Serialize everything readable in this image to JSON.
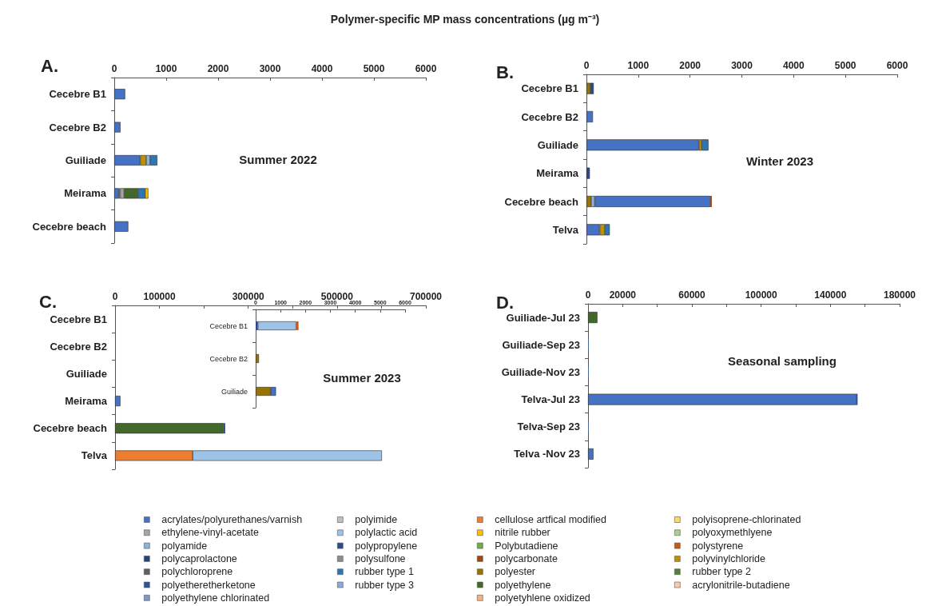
{
  "chart_data": [
    {
      "type": "bar",
      "orientation": "horizontal",
      "stacked": true,
      "title": "Polymer-specific MP mass concentrations (µg m⁻³)",
      "annotations": [
        "A.",
        "Summer 2022"
      ],
      "categories": [
        "Cecebre B1",
        "Cecebre B2",
        "Guiliade",
        "Meirama",
        "Cecebre beach"
      ],
      "xlim": [
        0,
        6000
      ],
      "xticks": [
        0,
        1000,
        2000,
        3000,
        4000,
        5000,
        6000
      ],
      "series": [
        {
          "color": "#4472c4",
          "values": [
            210,
            120,
            500,
            75,
            270
          ]
        },
        {
          "color": "#5f5f5f",
          "values": [
            null,
            null,
            null,
            40,
            null
          ]
        },
        {
          "color": "#a5a5a5",
          "values": [
            null,
            null,
            null,
            75,
            null
          ]
        },
        {
          "color": "#43682b",
          "values": [
            null,
            null,
            null,
            270,
            null
          ]
        },
        {
          "color": "#bf9000",
          "values": [
            null,
            null,
            115,
            null,
            null
          ]
        },
        {
          "color": "#8fb0d8",
          "values": [
            null,
            null,
            75,
            null,
            null
          ]
        },
        {
          "color": "#2e75b6",
          "values": [
            null,
            null,
            140,
            135,
            null
          ]
        },
        {
          "color": "#ffc000",
          "values": [
            null,
            null,
            null,
            60,
            null
          ]
        }
      ]
    },
    {
      "type": "bar",
      "orientation": "horizontal",
      "stacked": true,
      "annotations": [
        "B.",
        "Winter 2023"
      ],
      "categories": [
        "Cecebre B1",
        "Cecebre B2",
        "Guiliade",
        "Meirama",
        "Cecebre beach",
        "Telva"
      ],
      "xlim": [
        0,
        6000
      ],
      "xticks": [
        0,
        1000,
        2000,
        3000,
        4000,
        5000,
        6000
      ],
      "series": [
        {
          "color": "#997300",
          "values": [
            75,
            null,
            null,
            null,
            90,
            null
          ]
        },
        {
          "color": "#8fb0d8",
          "values": [
            null,
            null,
            null,
            null,
            70,
            null
          ]
        },
        {
          "color": "#4472c4",
          "values": [
            null,
            125,
            2170,
            null,
            2230,
            255
          ]
        },
        {
          "color": "#bf9000",
          "values": [
            null,
            null,
            55,
            null,
            null,
            100
          ]
        },
        {
          "color": "#2e4a8c",
          "values": [
            65,
            null,
            null,
            65,
            null,
            null
          ]
        },
        {
          "color": "#2e75b6",
          "values": [
            null,
            null,
            130,
            null,
            null,
            95
          ]
        },
        {
          "color": "#9e480e",
          "values": [
            null,
            null,
            null,
            null,
            30,
            null
          ]
        }
      ]
    },
    {
      "type": "bar",
      "orientation": "horizontal",
      "stacked": true,
      "annotations": [
        "C.",
        "Summer 2023"
      ],
      "categories": [
        "Cecebre B1",
        "Cecebre B2",
        "Guiliade",
        "Meirama",
        "Cecebre beach",
        "Telva"
      ],
      "xlim": [
        0,
        700000
      ],
      "xticks": [
        0,
        100000,
        {
          "value": 200000,
          "label": null
        },
        300000,
        {
          "value": 400000,
          "label": null
        },
        500000,
        {
          "value": 600000,
          "label": null
        },
        700000
      ],
      "series": [
        {
          "color": "#43682b",
          "values": [
            null,
            null,
            null,
            null,
            244000,
            null
          ]
        },
        {
          "color": "#264478",
          "values": [
            null,
            null,
            null,
            null,
            4000,
            null
          ]
        },
        {
          "color": "#ed7d31",
          "values": [
            null,
            null,
            null,
            null,
            null,
            175000
          ]
        },
        {
          "color": "#9dc3e6",
          "values": [
            null,
            null,
            null,
            null,
            null,
            426000
          ]
        },
        {
          "color": "#4472c4",
          "values": [
            null,
            null,
            null,
            12000,
            null,
            null
          ]
        }
      ]
    },
    {
      "type": "bar",
      "orientation": "horizontal",
      "stacked": true,
      "categories": [
        "Cecebre B1",
        "Cecebre B2",
        "Guiliade"
      ],
      "xlim": [
        0,
        6000
      ],
      "xticks": [
        0,
        1000,
        2000,
        3000,
        4000,
        5000,
        6000
      ],
      "series": [
        {
          "color": "#2e4a8c",
          "values": [
            85,
            null,
            null
          ]
        },
        {
          "color": "#997300",
          "values": [
            null,
            130,
            600
          ]
        },
        {
          "color": "#9dc3e6",
          "values": [
            1540,
            null,
            null
          ]
        },
        {
          "color": "#4472c4",
          "values": [
            null,
            null,
            215
          ]
        },
        {
          "color": "#c55a11",
          "values": [
            95,
            null,
            null
          ]
        }
      ]
    },
    {
      "type": "bar",
      "orientation": "horizontal",
      "stacked": true,
      "legend": "bottom",
      "annotations": [
        "D.",
        "Seasonal sampling"
      ],
      "categories": [
        "Guiliade-Jul 23",
        "Guiliade-Sep 23",
        "Guiliade-Nov 23",
        "Telva-Jul 23",
        "Telva-Sep 23",
        "Telva -Nov 23"
      ],
      "xlim": [
        0,
        180000
      ],
      "xticks": [
        0,
        20000,
        {
          "value": 40000,
          "label": null
        },
        60000,
        {
          "value": 80000,
          "label": null
        },
        100000,
        {
          "value": 120000,
          "label": null
        },
        140000,
        {
          "value": 160000,
          "label": null
        },
        180000
      ],
      "series": [
        {
          "name": "acrylates/polyurethanes/varnish",
          "color": "#4472c4",
          "values": [
            null,
            300,
            300,
            155000,
            300,
            3100
          ]
        },
        {
          "name": "ethylene-vinyl-acetate",
          "color": "#a5a5a5",
          "values": [
            null,
            null,
            null,
            null,
            null,
            null
          ]
        },
        {
          "name": "polyamide",
          "color": "#8fb0d8",
          "values": [
            null,
            null,
            null,
            null,
            null,
            null
          ]
        },
        {
          "name": "polycaprolactone",
          "color": "#264478",
          "values": [
            null,
            null,
            null,
            null,
            null,
            null
          ]
        },
        {
          "name": "polychloroprene",
          "color": "#5f5f5f",
          "values": [
            null,
            null,
            null,
            null,
            null,
            null
          ]
        },
        {
          "name": "polyetheretherketone",
          "color": "#2f5597",
          "values": [
            null,
            null,
            null,
            null,
            null,
            null
          ]
        },
        {
          "name": "polyethylene chlorinated",
          "color": "#7f97c9",
          "values": [
            null,
            null,
            null,
            null,
            null,
            null
          ]
        },
        {
          "name": "polyimide",
          "color": "#bfbfbf",
          "values": [
            null,
            null,
            null,
            null,
            null,
            null
          ]
        },
        {
          "name": "polylactic acid",
          "color": "#9dc3e6",
          "values": [
            null,
            null,
            null,
            null,
            null,
            null
          ]
        },
        {
          "name": "polypropylene",
          "color": "#2e4a8c",
          "values": [
            null,
            null,
            null,
            700,
            null,
            null
          ]
        },
        {
          "name": "polysulfone",
          "color": "#8c8c8c",
          "values": [
            null,
            null,
            null,
            null,
            null,
            null
          ]
        },
        {
          "name": "rubber type 1",
          "color": "#2e75b6",
          "values": [
            null,
            null,
            null,
            null,
            null,
            null
          ]
        },
        {
          "name": "rubber type 3",
          "color": "#8eaadb",
          "values": [
            null,
            null,
            null,
            null,
            null,
            null
          ]
        },
        {
          "name": "cellulose artfical modified",
          "color": "#ed7d31",
          "values": [
            null,
            null,
            null,
            null,
            null,
            null
          ]
        },
        {
          "name": "nitrile rubber",
          "color": "#ffc000",
          "values": [
            null,
            null,
            null,
            null,
            null,
            null
          ]
        },
        {
          "name": "Polybutadiene",
          "color": "#70ad47",
          "values": [
            null,
            null,
            null,
            null,
            null,
            null
          ]
        },
        {
          "name": "polycarbonate",
          "color": "#9e480e",
          "values": [
            null,
            null,
            null,
            null,
            null,
            null
          ]
        },
        {
          "name": "polyester",
          "color": "#997300",
          "values": [
            null,
            null,
            null,
            null,
            null,
            null
          ]
        },
        {
          "name": "polyethylene",
          "color": "#43682b",
          "values": [
            5400,
            null,
            null,
            null,
            null,
            null
          ]
        },
        {
          "name": "polyetyhlene oxidized",
          "color": "#f4b183",
          "values": [
            null,
            null,
            null,
            null,
            null,
            null
          ]
        },
        {
          "name": "polyisoprene-chlorinated",
          "color": "#ffd966",
          "values": [
            null,
            null,
            null,
            null,
            null,
            null
          ]
        },
        {
          "name": "polyoxymethlyene",
          "color": "#a9d18e",
          "values": [
            null,
            null,
            null,
            null,
            null,
            null
          ]
        },
        {
          "name": "polystyrene",
          "color": "#c55a11",
          "values": [
            null,
            null,
            null,
            null,
            null,
            null
          ]
        },
        {
          "name": "polyvinylchloride",
          "color": "#bf9000",
          "values": [
            null,
            null,
            null,
            null,
            null,
            null
          ]
        },
        {
          "name": "rubber type 2",
          "color": "#548235",
          "values": [
            null,
            null,
            null,
            null,
            null,
            null
          ]
        },
        {
          "name": "acrylonitrile-butadiene",
          "color": "#f8cbad",
          "values": [
            null,
            null,
            null,
            null,
            null,
            null
          ]
        }
      ]
    }
  ]
}
